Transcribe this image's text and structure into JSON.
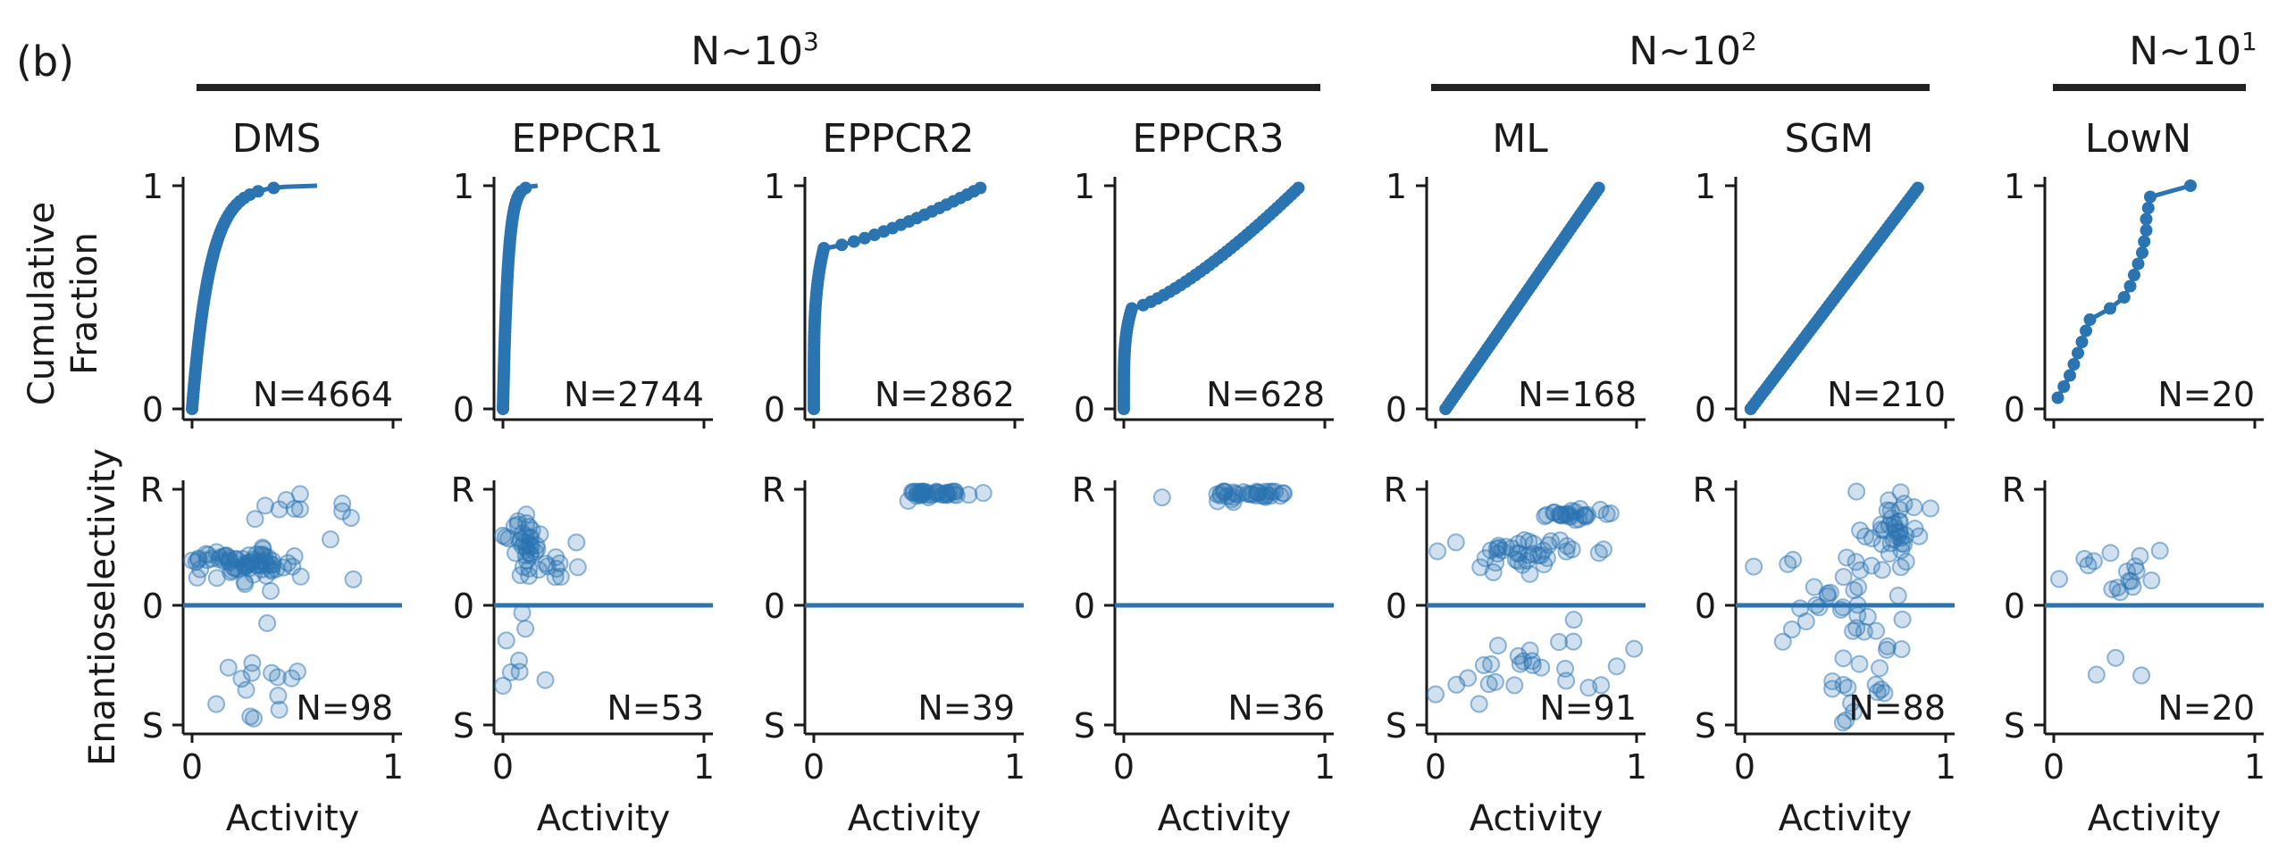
{
  "panel_label": "(b)",
  "groups": [
    {
      "label": "N~10",
      "exp": "3"
    },
    {
      "label": "N~10",
      "exp": "2"
    },
    {
      "label": "N~10",
      "exp": "1"
    }
  ],
  "ylabels": {
    "top": [
      "Cumulative",
      "Fraction"
    ],
    "bottom": "Enantioselectivity"
  },
  "xlabel": "Activity",
  "ticks": {
    "top_y": [
      "0",
      "1"
    ],
    "bottom_y": [
      "S",
      "0",
      "R"
    ],
    "x": [
      "0",
      "1"
    ]
  },
  "colors": {
    "series": "#2a74b2",
    "axis": "#1a1a1a",
    "group_bar": "#222222"
  },
  "chart_data": [
    {
      "title": "DMS",
      "type": "line",
      "cdf_n": "N=4664",
      "cdf_shape": {
        "kind": "skewed",
        "k": 0.09,
        "max_x": 0.72
      },
      "scatter_n": "N=98",
      "scatter_clusters": [
        {
          "c": [
            0.25,
            0.38
          ],
          "sx": 0.12,
          "sy": 0.05,
          "n": 60
        },
        {
          "c": [
            0.3,
            -0.65
          ],
          "sx": 0.12,
          "sy": 0.22,
          "n": 15
        },
        {
          "c": [
            0.4,
            0.75
          ],
          "sx": 0.15,
          "sy": 0.1,
          "n": 10
        },
        {
          "c": [
            0.35,
            0.3
          ],
          "sx": 0.2,
          "sy": 0.1,
          "n": 13
        }
      ],
      "xlim": [
        0,
        1
      ]
    },
    {
      "title": "EPPCR1",
      "type": "line",
      "cdf_n": "N=2744",
      "cdf_shape": {
        "kind": "skewed",
        "k": 0.025,
        "max_x": 0.55
      },
      "scatter_n": "N=53",
      "scatter_clusters": [
        {
          "c": [
            0.1,
            0.55
          ],
          "sx": 0.05,
          "sy": 0.12,
          "n": 30
        },
        {
          "c": [
            0.2,
            0.35
          ],
          "sx": 0.1,
          "sy": 0.08,
          "n": 15
        },
        {
          "c": [
            0.08,
            -0.5
          ],
          "sx": 0.05,
          "sy": 0.2,
          "n": 8
        }
      ],
      "xlim": [
        0,
        1
      ]
    },
    {
      "title": "EPPCR2",
      "type": "line",
      "cdf_n": "N=2862",
      "cdf_shape": {
        "kind": "plateau",
        "knee_x": 0.05,
        "knee_y": 0.72,
        "max_x": 0.85
      },
      "scatter_n": "N=39",
      "scatter_clusters": [
        {
          "c": [
            0.62,
            0.97
          ],
          "sx": 0.1,
          "sy": 0.02,
          "n": 39
        }
      ],
      "xlim": [
        0,
        1
      ]
    },
    {
      "title": "EPPCR3",
      "type": "line",
      "cdf_n": "N=628",
      "cdf_shape": {
        "kind": "plateau",
        "knee_x": 0.04,
        "knee_y": 0.45,
        "max_x": 0.88
      },
      "scatter_n": "N=36",
      "scatter_clusters": [
        {
          "c": [
            0.6,
            0.96
          ],
          "sx": 0.15,
          "sy": 0.03,
          "n": 36
        }
      ],
      "xlim": [
        0,
        1
      ]
    },
    {
      "title": "ML",
      "type": "line",
      "cdf_n": "N=168",
      "cdf_shape": {
        "kind": "linear",
        "min_x": 0.05,
        "max_x": 0.82
      },
      "scatter_n": "N=91",
      "scatter_clusters": [
        {
          "c": [
            0.65,
            0.78
          ],
          "sx": 0.08,
          "sy": 0.02,
          "n": 25
        },
        {
          "c": [
            0.45,
            0.45
          ],
          "sx": 0.2,
          "sy": 0.08,
          "n": 40
        },
        {
          "c": [
            0.4,
            -0.5
          ],
          "sx": 0.25,
          "sy": 0.2,
          "n": 26
        }
      ],
      "xlim": [
        0,
        1
      ]
    },
    {
      "title": "SGM",
      "type": "line",
      "cdf_n": "N=210",
      "cdf_shape": {
        "kind": "linear",
        "min_x": 0.03,
        "max_x": 0.87
      },
      "scatter_n": "N=88",
      "scatter_clusters": [
        {
          "c": [
            0.75,
            0.7
          ],
          "sx": 0.08,
          "sy": 0.15,
          "n": 35
        },
        {
          "c": [
            0.5,
            0.2
          ],
          "sx": 0.2,
          "sy": 0.3,
          "n": 30
        },
        {
          "c": [
            0.6,
            -0.5
          ],
          "sx": 0.15,
          "sy": 0.25,
          "n": 23
        }
      ],
      "xlim": [
        0,
        1
      ]
    },
    {
      "title": "LowN",
      "type": "line",
      "cdf_n": "N=20",
      "cdf_shape": {
        "kind": "steps",
        "points": [
          [
            0.02,
            0.05
          ],
          [
            0.05,
            0.1
          ],
          [
            0.08,
            0.15
          ],
          [
            0.1,
            0.2
          ],
          [
            0.12,
            0.25
          ],
          [
            0.14,
            0.3
          ],
          [
            0.16,
            0.35
          ],
          [
            0.18,
            0.4
          ],
          [
            0.28,
            0.45
          ],
          [
            0.35,
            0.5
          ],
          [
            0.38,
            0.55
          ],
          [
            0.4,
            0.6
          ],
          [
            0.42,
            0.65
          ],
          [
            0.44,
            0.7
          ],
          [
            0.45,
            0.75
          ],
          [
            0.46,
            0.8
          ],
          [
            0.46,
            0.85
          ],
          [
            0.47,
            0.9
          ],
          [
            0.48,
            0.95
          ],
          [
            0.68,
            1.0
          ]
        ]
      },
      "scatter_n": "N=20",
      "scatter_clusters": [
        {
          "c": [
            0.4,
            0.25
          ],
          "sx": 0.15,
          "sy": 0.12,
          "n": 17
        },
        {
          "c": [
            0.3,
            -0.5
          ],
          "sx": 0.3,
          "sy": 0.2,
          "n": 3
        }
      ],
      "xlim": [
        0,
        1
      ]
    }
  ]
}
